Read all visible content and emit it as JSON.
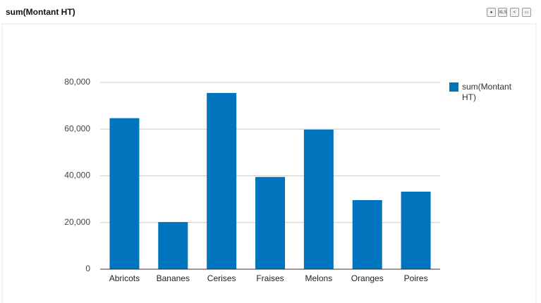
{
  "chart_data": {
    "type": "bar",
    "title": "sum(Montant HT)",
    "categories": [
      "Abricots",
      "Bananes",
      "Cerises",
      "Fraises",
      "Melons",
      "Oranges",
      "Poires"
    ],
    "series": [
      {
        "name": "sum(Montant HT)",
        "color": "#0074bd",
        "values": [
          64700,
          20200,
          75500,
          39500,
          59800,
          29600,
          33200
        ]
      }
    ],
    "ylim": [
      0,
      80000
    ],
    "yticks": [
      0,
      {
        "value": 20000,
        "label": "20,000"
      },
      {
        "value": 40000,
        "label": "40,000"
      },
      {
        "value": 60000,
        "label": "60,000"
      },
      {
        "value": 80000,
        "label": "80,000"
      }
    ],
    "grid": true,
    "legend": "right"
  },
  "toolbar": {
    "xls": "XLS"
  }
}
